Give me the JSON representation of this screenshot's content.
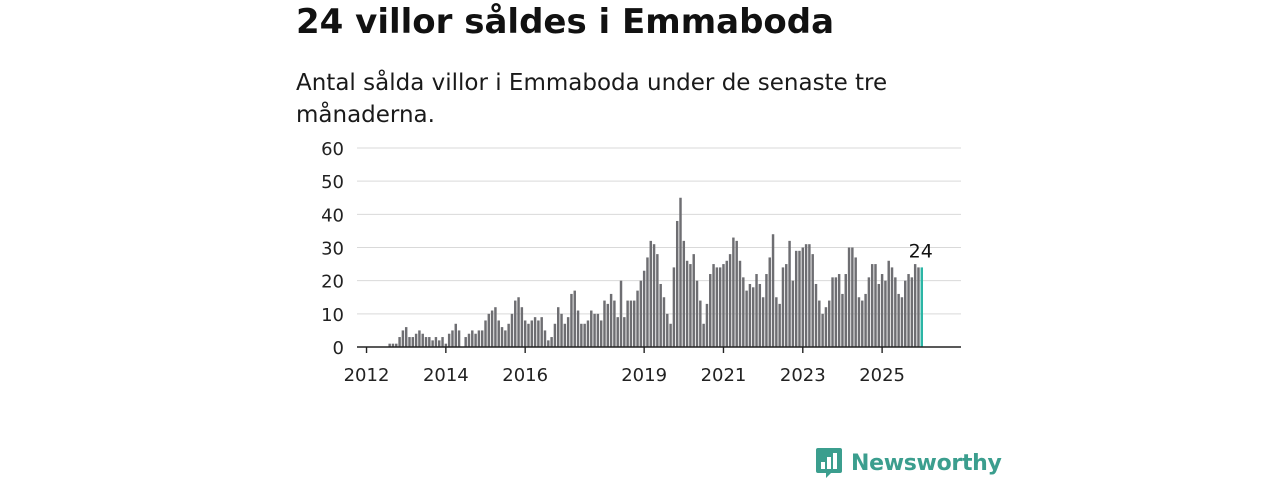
{
  "title": "24 villor såldes i Emmaboda",
  "subtitle": "Antal sålda villor i Emmaboda under de senaste tre månaderna.",
  "brand": {
    "name": "Newsworthy",
    "color": "#3b9e8e",
    "icon": "bar-chart-speech-bubble-icon"
  },
  "chart_data": {
    "type": "bar",
    "start": "2011-12",
    "ylim": [
      0,
      60
    ],
    "yticks": [
      0,
      10,
      20,
      30,
      40,
      50,
      60
    ],
    "xticks": [
      "2012",
      "2014",
      "2016",
      "2019",
      "2021",
      "2023",
      "2025"
    ],
    "grid": true,
    "bar_color": "#6e6e72",
    "highlight_color": "#2bb5a5",
    "highlight_label": "24",
    "values": [
      0,
      0,
      0,
      0,
      0,
      0,
      0,
      0,
      1,
      1,
      1,
      3,
      5,
      6,
      3,
      3,
      4,
      5,
      4,
      3,
      3,
      2,
      3,
      2,
      3,
      1,
      4,
      5,
      7,
      5,
      0,
      3,
      4,
      5,
      4,
      5,
      5,
      8,
      10,
      11,
      12,
      8,
      6,
      5,
      7,
      10,
      14,
      15,
      12,
      8,
      7,
      8,
      9,
      8,
      9,
      5,
      2,
      3,
      7,
      12,
      10,
      7,
      9,
      16,
      17,
      11,
      7,
      7,
      8,
      11,
      10,
      10,
      8,
      14,
      13,
      16,
      14,
      9,
      20,
      9,
      14,
      14,
      14,
      17,
      20,
      23,
      27,
      32,
      31,
      28,
      19,
      15,
      10,
      7,
      24,
      38,
      45,
      32,
      26,
      25,
      28,
      20,
      14,
      7,
      13,
      22,
      25,
      24,
      24,
      25,
      26,
      28,
      33,
      32,
      26,
      21,
      17,
      19,
      18,
      22,
      19,
      15,
      22,
      27,
      34,
      15,
      13,
      24,
      25,
      32,
      20,
      29,
      29,
      30,
      31,
      31,
      28,
      19,
      14,
      10,
      12,
      14,
      21,
      21,
      22,
      16,
      22,
      30,
      30,
      27,
      15,
      14,
      16,
      21,
      25,
      25,
      19,
      22,
      20,
      26,
      24,
      21,
      16,
      15,
      20,
      22,
      21,
      25,
      24,
      24
    ]
  }
}
